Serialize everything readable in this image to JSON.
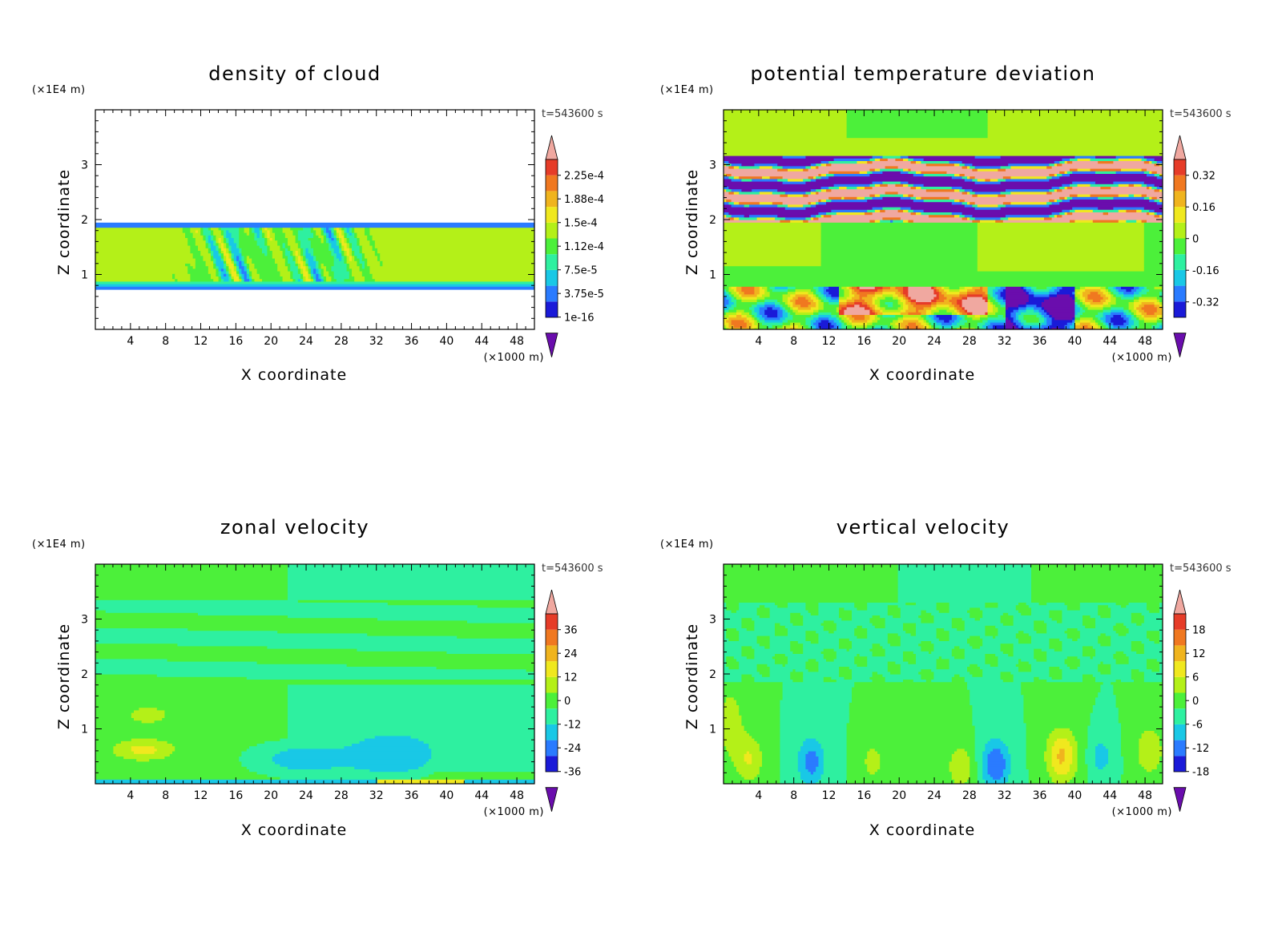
{
  "chart_data": [
    {
      "type": "heatmap",
      "title": "density of cloud",
      "xlabel": "X coordinate",
      "ylabel": "Z coordinate",
      "x_unit": "(×1000 m)",
      "y_unit": "(×1E4 m)",
      "time_label": "t=543600 s",
      "x_ticks": [
        "4",
        "8",
        "12",
        "16",
        "20",
        "24",
        "28",
        "32",
        "36",
        "40",
        "44",
        "48"
      ],
      "y_ticks": [
        "1",
        "2",
        "3"
      ],
      "xlim": [
        0,
        50
      ],
      "ylim": [
        0,
        4
      ],
      "colorbar_labels": [
        "2.25e-4",
        "1.88e-4",
        "1.5e-4",
        "1.12e-4",
        "7.5e-5",
        "3.75e-5",
        "1e-16"
      ],
      "colors": [
        "#6a0dad",
        "#1a1ad8",
        "#2a7bff",
        "#19c8e6",
        "#2ef0a0",
        "#4cf03a",
        "#b4f018",
        "#f0e81e",
        "#f0b41e",
        "#f07820",
        "#e63c28",
        "#f0a8a0"
      ],
      "field": "cloud"
    },
    {
      "type": "heatmap",
      "title": "potential temperature deviation",
      "xlabel": "X coordinate",
      "ylabel": "Z coordinate",
      "x_unit": "(×1000 m)",
      "y_unit": "(×1E4 m)",
      "time_label": "t=543600 s",
      "x_ticks": [
        "4",
        "8",
        "12",
        "16",
        "20",
        "24",
        "28",
        "32",
        "36",
        "40",
        "44",
        "48"
      ],
      "y_ticks": [
        "1",
        "2",
        "3"
      ],
      "xlim": [
        0,
        50
      ],
      "ylim": [
        0,
        4
      ],
      "colorbar_labels": [
        "0.32",
        "0.16",
        "0",
        "-0.16",
        "-0.32"
      ],
      "colors": [
        "#6a0dad",
        "#1a1ad8",
        "#2a7bff",
        "#19c8e6",
        "#2ef0a0",
        "#4cf03a",
        "#b4f018",
        "#f0e81e",
        "#f0b41e",
        "#f07820",
        "#e63c28",
        "#f0a8a0"
      ],
      "field": "theta"
    },
    {
      "type": "heatmap",
      "title": "zonal velocity",
      "xlabel": "X coordinate",
      "ylabel": "Z coordinate",
      "x_unit": "(×1000 m)",
      "y_unit": "(×1E4 m)",
      "time_label": "t=543600 s",
      "x_ticks": [
        "4",
        "8",
        "12",
        "16",
        "20",
        "24",
        "28",
        "32",
        "36",
        "40",
        "44",
        "48"
      ],
      "y_ticks": [
        "1",
        "2",
        "3"
      ],
      "xlim": [
        0,
        50
      ],
      "ylim": [
        0,
        4
      ],
      "colorbar_labels": [
        "36",
        "24",
        "12",
        "0",
        "-12",
        "-24",
        "-36"
      ],
      "colors": [
        "#6a0dad",
        "#1a1ad8",
        "#2a7bff",
        "#19c8e6",
        "#2ef0a0",
        "#4cf03a",
        "#b4f018",
        "#f0e81e",
        "#f0b41e",
        "#f07820",
        "#e63c28",
        "#f0a8a0"
      ],
      "field": "u"
    },
    {
      "type": "heatmap",
      "title": "vertical velocity",
      "xlabel": "X coordinate",
      "ylabel": "Z coordinate",
      "x_unit": "(×1000 m)",
      "y_unit": "(×1E4 m)",
      "time_label": "t=543600 s",
      "x_ticks": [
        "4",
        "8",
        "12",
        "16",
        "20",
        "24",
        "28",
        "32",
        "36",
        "40",
        "44",
        "48"
      ],
      "y_ticks": [
        "1",
        "2",
        "3"
      ],
      "xlim": [
        0,
        50
      ],
      "ylim": [
        0,
        4
      ],
      "colorbar_labels": [
        "18",
        "12",
        "6",
        "0",
        "-6",
        "-12",
        "-18"
      ],
      "colors": [
        "#6a0dad",
        "#1a1ad8",
        "#2a7bff",
        "#19c8e6",
        "#2ef0a0",
        "#4cf03a",
        "#b4f018",
        "#f0e81e",
        "#f0b41e",
        "#f07820",
        "#e63c28",
        "#f0a8a0"
      ],
      "field": "w"
    }
  ]
}
